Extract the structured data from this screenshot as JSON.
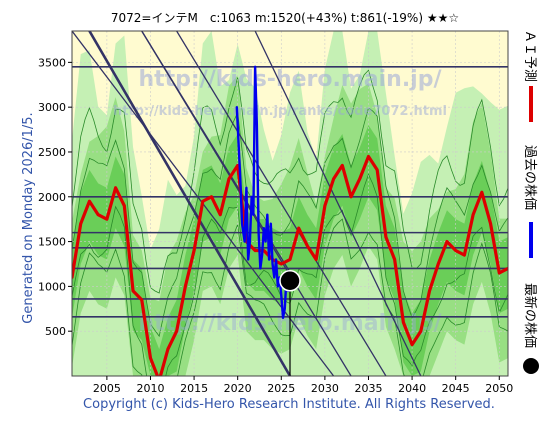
{
  "header": {
    "title": "7072=インテM　c:1063  m:1520(+43%)  t:861(-19%)  ★★☆"
  },
  "side_left": "Generated on Monday 2026/1/5.",
  "footer": "Copyright (c) Kids-Hero Research Institute. All Rights Reserved.",
  "watermarks": {
    "url_main": "http://kids-hero.main.jp/",
    "url_code": "http://kids-hero.main.jp/ranks/code7072.html"
  },
  "legend": [
    {
      "label": "ＡＩ予測",
      "color": "#dd0000",
      "kind": "line"
    },
    {
      "label": "過去の株価",
      "color": "#0000ee",
      "kind": "line"
    },
    {
      "label": "最新の株価",
      "color": "#000000",
      "kind": "dot"
    }
  ],
  "chart_data": {
    "type": "line",
    "title": "7072=インテM　c:1063  m:1520(+43%)  t:861(-19%)  ★★☆",
    "xlim": [
      2001,
      2051
    ],
    "ylim": [
      0,
      3850
    ],
    "x_ticks": [
      2005,
      2010,
      2015,
      2020,
      2025,
      2030,
      2035,
      2040,
      2045,
      2050
    ],
    "y_ticks": [
      500,
      1000,
      1500,
      2000,
      2500,
      3000,
      3500
    ],
    "grid": true,
    "legend_position": "right-vertical",
    "horizontal_levels": [
      3450,
      2000,
      1600,
      1430,
      1200,
      860,
      660
    ],
    "trend_lines": [
      {
        "x": [
          2001,
          2031
        ],
        "y": [
          3850,
          0
        ]
      },
      {
        "x": [
          2009,
          2033
        ],
        "y": [
          3850,
          0
        ]
      },
      {
        "x": [
          2013,
          2037
        ],
        "y": [
          3850,
          0
        ]
      },
      {
        "x": [
          2022,
          2041
        ],
        "y": [
          3850,
          0
        ]
      },
      {
        "x": [
          2003,
          2026
        ],
        "y": [
          3850,
          0
        ]
      },
      {
        "x": [
          2009,
          2027
        ],
        "y": [
          3850,
          1000
        ]
      }
    ],
    "series": [
      {
        "name": "ＡＩ予測",
        "color": "#dd0000",
        "points": [
          [
            2001,
            1100
          ],
          [
            2002,
            1700
          ],
          [
            2003,
            1950
          ],
          [
            2004,
            1800
          ],
          [
            2005,
            1750
          ],
          [
            2006,
            2100
          ],
          [
            2007,
            1900
          ],
          [
            2008,
            950
          ],
          [
            2009,
            850
          ],
          [
            2010,
            200
          ],
          [
            2011,
            -50
          ],
          [
            2012,
            300
          ],
          [
            2013,
            500
          ],
          [
            2014,
            1000
          ],
          [
            2015,
            1400
          ],
          [
            2016,
            1950
          ],
          [
            2017,
            2000
          ],
          [
            2018,
            1800
          ],
          [
            2019,
            2200
          ],
          [
            2020,
            2350
          ],
          [
            2021,
            1500
          ],
          [
            2022,
            1400
          ],
          [
            2023,
            1400
          ],
          [
            2024,
            1300
          ],
          [
            2025,
            1250
          ],
          [
            2026,
            1300
          ],
          [
            2027,
            1650
          ],
          [
            2028,
            1450
          ],
          [
            2029,
            1300
          ],
          [
            2030,
            1900
          ],
          [
            2031,
            2200
          ],
          [
            2032,
            2350
          ],
          [
            2033,
            2000
          ],
          [
            2034,
            2200
          ],
          [
            2035,
            2450
          ],
          [
            2036,
            2300
          ],
          [
            2037,
            1550
          ],
          [
            2038,
            1300
          ],
          [
            2039,
            600
          ],
          [
            2040,
            350
          ],
          [
            2041,
            500
          ],
          [
            2042,
            950
          ],
          [
            2043,
            1250
          ],
          [
            2044,
            1500
          ],
          [
            2045,
            1400
          ],
          [
            2046,
            1350
          ],
          [
            2047,
            1800
          ],
          [
            2048,
            2050
          ],
          [
            2049,
            1700
          ],
          [
            2050,
            1150
          ],
          [
            2051,
            1200
          ]
        ]
      },
      {
        "name": "過去の株価",
        "color": "#0000ee",
        "points": [
          [
            2019.9,
            3000
          ],
          [
            2020.1,
            2600
          ],
          [
            2020.3,
            2200
          ],
          [
            2020.5,
            1700
          ],
          [
            2020.8,
            1500
          ],
          [
            2021.0,
            2100
          ],
          [
            2021.2,
            1300
          ],
          [
            2021.4,
            1500
          ],
          [
            2021.6,
            2000
          ],
          [
            2021.8,
            1800
          ],
          [
            2022.0,
            3450
          ],
          [
            2022.2,
            2800
          ],
          [
            2022.4,
            1600
          ],
          [
            2022.6,
            1200
          ],
          [
            2022.8,
            1350
          ],
          [
            2023.0,
            1650
          ],
          [
            2023.2,
            1500
          ],
          [
            2023.4,
            1800
          ],
          [
            2023.6,
            1300
          ],
          [
            2023.8,
            1700
          ],
          [
            2024.0,
            1250
          ],
          [
            2024.2,
            1100
          ],
          [
            2024.4,
            1300
          ],
          [
            2024.6,
            1000
          ],
          [
            2024.8,
            1100
          ],
          [
            2025.0,
            900
          ],
          [
            2025.2,
            650
          ],
          [
            2025.4,
            750
          ],
          [
            2025.6,
            1100
          ],
          [
            2025.8,
            950
          ]
        ]
      }
    ],
    "latest_point": {
      "name": "最新の株価",
      "x": 2026,
      "y": 1063
    }
  }
}
